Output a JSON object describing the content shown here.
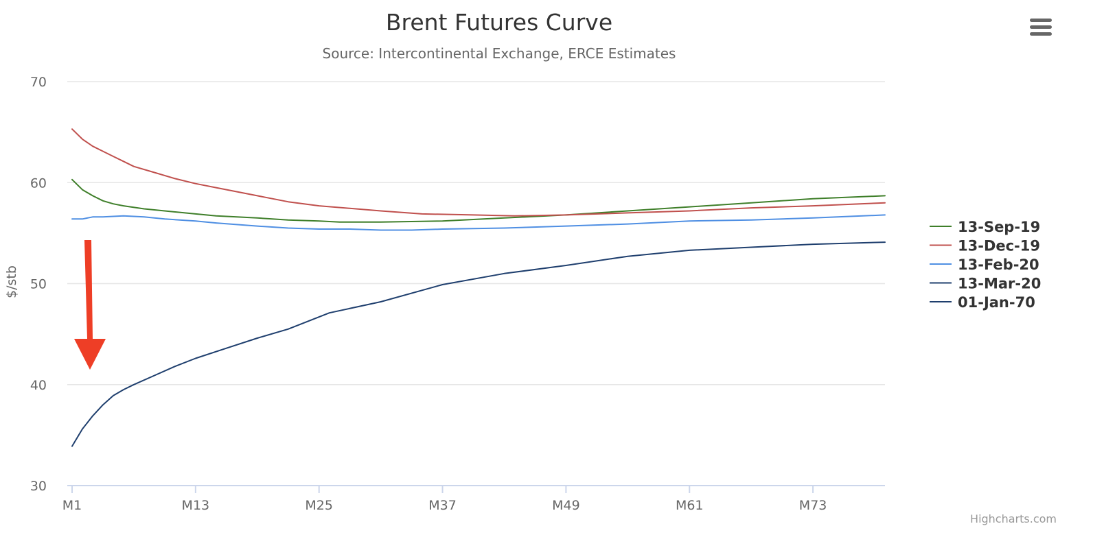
{
  "chart_data": {
    "type": "line",
    "title": "Brent Futures Curve",
    "subtitle": "Source: Intercontinental Exchange, ERCE Estimates",
    "ylabel": "$/stb",
    "ylim": [
      30,
      70
    ],
    "yticks": [
      30,
      40,
      50,
      60,
      70
    ],
    "xlim": [
      1,
      80
    ],
    "xticks": [
      {
        "x": 1,
        "label": "M1"
      },
      {
        "x": 13,
        "label": "M13"
      },
      {
        "x": 25,
        "label": "M25"
      },
      {
        "x": 37,
        "label": "M37"
      },
      {
        "x": 49,
        "label": "M49"
      },
      {
        "x": 61,
        "label": "M61"
      },
      {
        "x": 73,
        "label": "M73"
      }
    ],
    "grid": true,
    "legend_position": "right",
    "series": [
      {
        "name": "13-Sep-19",
        "color": "#3f7f2a",
        "points": [
          [
            1,
            60.3
          ],
          [
            2,
            59.3
          ],
          [
            3,
            58.7
          ],
          [
            4,
            58.2
          ],
          [
            5,
            57.9
          ],
          [
            6,
            57.7
          ],
          [
            8,
            57.4
          ],
          [
            10,
            57.2
          ],
          [
            13,
            56.9
          ],
          [
            15,
            56.7
          ],
          [
            19,
            56.5
          ],
          [
            22,
            56.3
          ],
          [
            25,
            56.2
          ],
          [
            27,
            56.1
          ],
          [
            31,
            56.1
          ],
          [
            37,
            56.2
          ],
          [
            43,
            56.5
          ],
          [
            49,
            56.8
          ],
          [
            55,
            57.2
          ],
          [
            61,
            57.6
          ],
          [
            67,
            58.0
          ],
          [
            73,
            58.4
          ],
          [
            80,
            58.7
          ]
        ]
      },
      {
        "name": "13-Dec-19",
        "color": "#c0504d",
        "points": [
          [
            1,
            65.3
          ],
          [
            2,
            64.3
          ],
          [
            3,
            63.6
          ],
          [
            4,
            63.1
          ],
          [
            5,
            62.6
          ],
          [
            6,
            62.1
          ],
          [
            7,
            61.6
          ],
          [
            9,
            61.0
          ],
          [
            11,
            60.4
          ],
          [
            13,
            59.9
          ],
          [
            15,
            59.5
          ],
          [
            19,
            58.7
          ],
          [
            22,
            58.1
          ],
          [
            25,
            57.7
          ],
          [
            31,
            57.2
          ],
          [
            35,
            56.9
          ],
          [
            40,
            56.8
          ],
          [
            44,
            56.7
          ],
          [
            49,
            56.8
          ],
          [
            55,
            57.0
          ],
          [
            61,
            57.2
          ],
          [
            67,
            57.5
          ],
          [
            73,
            57.7
          ],
          [
            80,
            58.0
          ]
        ]
      },
      {
        "name": "13-Feb-20",
        "color": "#4f8fe3",
        "points": [
          [
            1,
            56.4
          ],
          [
            2,
            56.4
          ],
          [
            3,
            56.6
          ],
          [
            4,
            56.6
          ],
          [
            6,
            56.7
          ],
          [
            8,
            56.6
          ],
          [
            10,
            56.4
          ],
          [
            13,
            56.2
          ],
          [
            15,
            56.0
          ],
          [
            19,
            55.7
          ],
          [
            22,
            55.5
          ],
          [
            25,
            55.4
          ],
          [
            28,
            55.4
          ],
          [
            31,
            55.3
          ],
          [
            34,
            55.3
          ],
          [
            37,
            55.4
          ],
          [
            43,
            55.5
          ],
          [
            49,
            55.7
          ],
          [
            55,
            55.9
          ],
          [
            61,
            56.2
          ],
          [
            67,
            56.3
          ],
          [
            73,
            56.5
          ],
          [
            80,
            56.8
          ]
        ]
      },
      {
        "name": "13-Mar-20",
        "color": "#1f3f6e",
        "points": [
          [
            1,
            33.9
          ],
          [
            2,
            35.6
          ],
          [
            3,
            36.9
          ],
          [
            4,
            38.0
          ],
          [
            5,
            38.9
          ],
          [
            6,
            39.5
          ],
          [
            7,
            40.0
          ],
          [
            9,
            40.9
          ],
          [
            11,
            41.8
          ],
          [
            13,
            42.6
          ],
          [
            16,
            43.6
          ],
          [
            19,
            44.6
          ],
          [
            22,
            45.5
          ],
          [
            26,
            47.1
          ],
          [
            31,
            48.2
          ],
          [
            37,
            49.9
          ],
          [
            43,
            51.0
          ],
          [
            49,
            51.8
          ],
          [
            55,
            52.7
          ],
          [
            61,
            53.3
          ],
          [
            67,
            53.6
          ],
          [
            73,
            53.9
          ],
          [
            80,
            54.1
          ]
        ]
      },
      {
        "name": "01-Jan-70",
        "color": "#1f3f6e",
        "points": []
      }
    ]
  }
}
